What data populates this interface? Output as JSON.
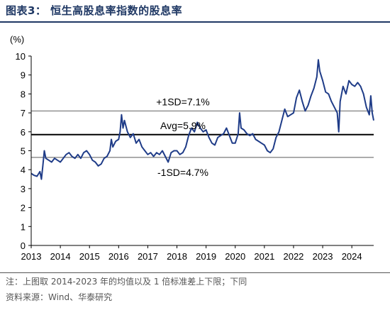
{
  "header": {
    "title": "图表3：  恒生高股息率指数的股息率"
  },
  "footer": {
    "note": "注：上图取 2014-2023 年的均值以及 1 倍标准差上下限；下同",
    "source": "资料来源：Wind、华泰研究"
  },
  "chart_data": {
    "type": "line",
    "title": "",
    "xlabel": "",
    "ylabel": "(%)",
    "xlim": [
      2013,
      2024.75
    ],
    "ylim": [
      0,
      10
    ],
    "x_ticks": [
      "2013",
      "2014",
      "2015",
      "2016",
      "2017",
      "2018",
      "2019",
      "2020",
      "2021",
      "2022",
      "2023",
      "2024"
    ],
    "y_ticks": [
      "0",
      "1",
      "2",
      "3",
      "4",
      "5",
      "6",
      "7",
      "8",
      "9",
      "10"
    ],
    "grid": false,
    "series": [
      {
        "name": "",
        "color": "#1f3c88",
        "x": [
          2013.0,
          2013.1,
          2013.2,
          2013.3,
          2013.35,
          2013.4,
          2013.45,
          2013.5,
          2013.6,
          2013.7,
          2013.8,
          2013.9,
          2014.0,
          2014.1,
          2014.2,
          2014.3,
          2014.4,
          2014.5,
          2014.6,
          2014.7,
          2014.8,
          2014.9,
          2015.0,
          2015.1,
          2015.2,
          2015.3,
          2015.4,
          2015.5,
          2015.6,
          2015.7,
          2015.75,
          2015.8,
          2015.9,
          2016.0,
          2016.05,
          2016.1,
          2016.15,
          2016.2,
          2016.3,
          2016.4,
          2016.5,
          2016.6,
          2016.7,
          2016.8,
          2016.9,
          2017.0,
          2017.1,
          2017.2,
          2017.3,
          2017.4,
          2017.5,
          2017.6,
          2017.7,
          2017.8,
          2017.9,
          2018.0,
          2018.1,
          2018.2,
          2018.3,
          2018.4,
          2018.5,
          2018.6,
          2018.7,
          2018.8,
          2018.9,
          2019.0,
          2019.1,
          2019.2,
          2019.3,
          2019.4,
          2019.5,
          2019.6,
          2019.7,
          2019.8,
          2019.9,
          2020.0,
          2020.1,
          2020.15,
          2020.2,
          2020.3,
          2020.4,
          2020.5,
          2020.6,
          2020.7,
          2020.8,
          2020.9,
          2021.0,
          2021.1,
          2021.2,
          2021.3,
          2021.4,
          2021.5,
          2021.6,
          2021.7,
          2021.8,
          2021.9,
          2022.0,
          2022.1,
          2022.2,
          2022.3,
          2022.4,
          2022.5,
          2022.6,
          2022.7,
          2022.8,
          2022.85,
          2022.9,
          2023.0,
          2023.1,
          2023.2,
          2023.3,
          2023.4,
          2023.5,
          2023.55,
          2023.6,
          2023.7,
          2023.8,
          2023.9,
          2024.0,
          2024.1,
          2024.2,
          2024.3,
          2024.4,
          2024.5,
          2024.6,
          2024.65,
          2024.7,
          2024.75
        ],
        "values": [
          3.8,
          3.7,
          3.65,
          3.9,
          3.5,
          4.2,
          5.0,
          4.6,
          4.5,
          4.4,
          4.6,
          4.5,
          4.4,
          4.6,
          4.8,
          4.9,
          4.7,
          4.6,
          4.8,
          4.6,
          4.9,
          5.0,
          4.8,
          4.5,
          4.4,
          4.2,
          4.3,
          4.6,
          4.7,
          5.0,
          5.6,
          5.2,
          5.5,
          5.6,
          6.0,
          6.9,
          6.2,
          6.6,
          6.0,
          5.7,
          5.9,
          5.4,
          5.6,
          5.2,
          5.0,
          4.8,
          4.9,
          4.7,
          4.9,
          4.8,
          5.0,
          4.7,
          4.4,
          4.9,
          5.0,
          5.0,
          4.8,
          4.9,
          5.2,
          5.8,
          6.2,
          6.0,
          6.5,
          6.2,
          6.0,
          6.1,
          5.7,
          5.4,
          5.3,
          5.7,
          5.8,
          5.9,
          6.2,
          5.8,
          5.4,
          5.4,
          5.9,
          7.0,
          6.2,
          6.1,
          5.9,
          5.8,
          5.9,
          5.6,
          5.5,
          5.4,
          5.3,
          5.0,
          4.9,
          5.1,
          5.7,
          6.0,
          6.6,
          7.2,
          6.8,
          6.9,
          7.0,
          7.8,
          8.2,
          7.6,
          7.1,
          7.4,
          7.9,
          8.3,
          8.9,
          9.8,
          9.2,
          8.7,
          8.1,
          8.0,
          7.6,
          7.3,
          7.0,
          6.0,
          7.6,
          8.4,
          8.0,
          8.7,
          8.5,
          8.4,
          8.6,
          8.4,
          8.0,
          7.3,
          6.9,
          7.9,
          7.0,
          6.6
        ]
      }
    ],
    "reference_lines": [
      {
        "label": "+1SD=7.1%",
        "value": 7.1,
        "color": "#999999"
      },
      {
        "label": "Avg=5.9%",
        "value": 5.85,
        "color": "#000000"
      },
      {
        "label": "-1SD=4.7%",
        "value": 4.65,
        "color": "#999999"
      }
    ]
  }
}
